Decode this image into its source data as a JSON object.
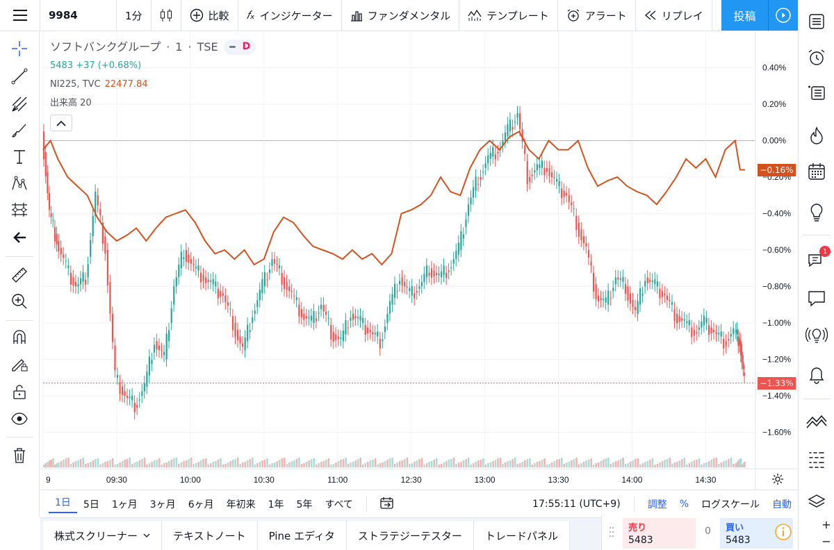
{
  "topbar": {
    "symbol": "9984",
    "interval": "1分",
    "compare": "比較",
    "indicators": "インジケーター",
    "fundamentals": "ファンダメンタル",
    "templates": "テンプレート",
    "alert": "アラート",
    "replay": "リプレイ",
    "post": "投稿"
  },
  "legend": {
    "title": "ソフトバンクグループ",
    "interval": "1",
    "exchange": "TSE",
    "badge": "D",
    "price": "5483",
    "change": "+37 (+0.68%)",
    "compare_symbol": "NI225, TVC",
    "compare_value": "22477.84",
    "volume_label": "出来高 20"
  },
  "chart_data": {
    "type": "line",
    "y_axis_format": "percent",
    "y_ticks": [
      0.4,
      0.2,
      0.0,
      -0.2,
      -0.4,
      -0.6,
      -0.8,
      -1.0,
      -1.2,
      -1.4,
      -1.6
    ],
    "y_tick_labels": [
      "0.40%",
      "0.20%",
      "0.00%",
      "−0.20%",
      "−0.40%",
      "−0.60%",
      "−0.80%",
      "−1.00%",
      "−1.20%",
      "−1.40%",
      "−1.60%"
    ],
    "ylim": [
      -1.8,
      0.6
    ],
    "x_tick_labels": [
      "9",
      "09:30",
      "10:00",
      "10:30",
      "11:00",
      "12:30",
      "13:00",
      "13:30",
      "14:00",
      "14:30"
    ],
    "x_ticks": [
      0,
      30,
      60,
      90,
      120,
      150,
      180,
      210,
      240,
      270
    ],
    "xlim": [
      0,
      290
    ],
    "series": [
      {
        "color": "#d4511e",
        "x": [
          0,
          3,
          6,
          10,
          14,
          18,
          22,
          26,
          30,
          34,
          38,
          42,
          46,
          50,
          54,
          58,
          62,
          66,
          70,
          74,
          78,
          82,
          86,
          90,
          94,
          98,
          102,
          106,
          110,
          114,
          118,
          122,
          126,
          130,
          134,
          138,
          142,
          146,
          150,
          154,
          158,
          162,
          166,
          170,
          174,
          178,
          182,
          186,
          190,
          194,
          198,
          202,
          206,
          210,
          214,
          218,
          222,
          226,
          230,
          234,
          238,
          242,
          246,
          250,
          254,
          258,
          262,
          266,
          270,
          274,
          278,
          282,
          284,
          286
        ],
        "values": [
          -0.05,
          0.0,
          -0.1,
          -0.2,
          -0.25,
          -0.3,
          -0.42,
          -0.5,
          -0.55,
          -0.52,
          -0.48,
          -0.55,
          -0.48,
          -0.42,
          -0.4,
          -0.38,
          -0.45,
          -0.55,
          -0.62,
          -0.6,
          -0.65,
          -0.6,
          -0.68,
          -0.65,
          -0.5,
          -0.42,
          -0.45,
          -0.52,
          -0.58,
          -0.6,
          -0.62,
          -0.65,
          -0.6,
          -0.65,
          -0.62,
          -0.68,
          -0.62,
          -0.4,
          -0.38,
          -0.35,
          -0.3,
          -0.2,
          -0.28,
          -0.3,
          -0.15,
          -0.05,
          0.0,
          -0.05,
          0.02,
          0.05,
          -0.05,
          -0.1,
          0.0,
          -0.05,
          -0.05,
          0.0,
          -0.15,
          -0.25,
          -0.22,
          -0.2,
          -0.25,
          -0.28,
          -0.3,
          -0.35,
          -0.28,
          -0.2,
          -0.1,
          -0.15,
          -0.1,
          -0.2,
          -0.05,
          0.0,
          -0.16,
          -0.16
        ]
      },
      {
        "color": "#26a69a",
        "x": [
          0,
          3,
          6,
          10,
          14,
          18,
          22,
          26,
          30,
          34,
          38,
          42,
          46,
          50,
          54,
          58,
          62,
          66,
          70,
          74,
          78,
          82,
          86,
          90,
          94,
          98,
          102,
          106,
          110,
          114,
          118,
          122,
          126,
          130,
          134,
          138,
          142,
          146,
          150,
          154,
          158,
          162,
          166,
          170,
          174,
          178,
          182,
          186,
          190,
          194,
          198,
          202,
          206,
          210,
          214,
          218,
          222,
          226,
          230,
          234,
          238,
          242,
          246,
          250,
          254,
          258,
          262,
          266,
          270,
          274,
          278,
          282,
          284,
          286
        ],
        "values": [
          0.05,
          -0.4,
          -0.55,
          -0.7,
          -0.8,
          -0.75,
          -0.3,
          -0.6,
          -1.3,
          -1.4,
          -1.45,
          -1.35,
          -1.1,
          -1.2,
          -0.8,
          -0.6,
          -0.7,
          -0.75,
          -0.8,
          -0.85,
          -1.0,
          -1.15,
          -0.95,
          -0.8,
          -0.65,
          -0.75,
          -0.85,
          -0.95,
          -1.0,
          -0.9,
          -1.05,
          -1.1,
          -0.95,
          -1.0,
          -1.05,
          -1.1,
          -0.9,
          -0.75,
          -0.85,
          -0.8,
          -0.7,
          -0.75,
          -0.7,
          -0.6,
          -0.35,
          -0.2,
          -0.1,
          -0.05,
          0.05,
          0.15,
          -0.2,
          -0.15,
          -0.15,
          -0.25,
          -0.3,
          -0.45,
          -0.6,
          -0.85,
          -0.9,
          -0.75,
          -0.8,
          -0.95,
          -0.75,
          -0.8,
          -0.85,
          -0.95,
          -1.0,
          -1.05,
          -1.0,
          -1.05,
          -1.1,
          -1.05,
          -1.1,
          -1.33
        ]
      }
    ],
    "last_values": [
      "−0.16%",
      "−1.33%"
    ]
  },
  "time_axis": {
    "settings_icon": "gear-icon"
  },
  "rangebar": {
    "ranges": [
      "1日",
      "5日",
      "1ヶ月",
      "3ヶ月",
      "6ヶ月",
      "年初来",
      "1年",
      "5年",
      "すべて"
    ],
    "clock": "17:55:11 (UTC+9)",
    "adjust": "調整",
    "percent": "%",
    "log": "ログスケール",
    "auto": "自動"
  },
  "bottom": {
    "tabs": [
      "株式スクリーナー",
      "テキストノート",
      "Pine エディタ",
      "ストラテジーテスター",
      "トレードパネル"
    ],
    "sell_label": "売り",
    "sell_value": "5483",
    "spread": "0",
    "buy_label": "買い",
    "buy_value": "5483"
  },
  "right": {
    "badge": "1"
  },
  "colors": {
    "accent": "#2196f3",
    "up": "#26a69a",
    "down": "#ef5350",
    "compare": "#d4511e"
  }
}
